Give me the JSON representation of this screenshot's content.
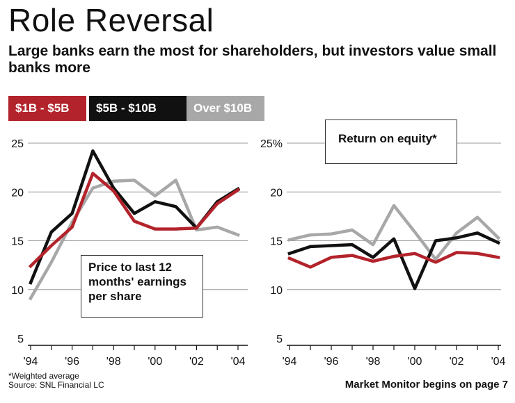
{
  "header": {
    "title": "Role Reversal",
    "subtitle": "Large banks earn the most for shareholders, but investors value small banks more"
  },
  "legend": {
    "items": [
      {
        "label": "$1B - $5B",
        "color": "#b3232b"
      },
      {
        "label": "$5B - $10B",
        "color": "#111111"
      },
      {
        "label": "Over $10B",
        "color": "#a8a8a8"
      }
    ]
  },
  "chart_data": [
    {
      "type": "line",
      "title": "Price to last 12 months' earnings per share",
      "x": [
        1994,
        1995,
        1996,
        1997,
        1998,
        1999,
        2000,
        2001,
        2002,
        2003,
        2004
      ],
      "xtick_labels": [
        "'94",
        "'96",
        "'98",
        "'00",
        "'02",
        "'04"
      ],
      "ylim": [
        5,
        25
      ],
      "yticks": [
        "5",
        "10",
        "15",
        "20",
        "25"
      ],
      "series": [
        {
          "name": "$1B - $5B",
          "color": "#b3232b",
          "values": [
            12.4,
            14.5,
            16.4,
            21.9,
            20.1,
            17.0,
            16.2,
            16.2,
            16.3,
            18.8,
            20.2
          ]
        },
        {
          "name": "$5B - $10B",
          "color": "#111111",
          "values": [
            10.7,
            15.9,
            17.8,
            24.2,
            20.4,
            17.8,
            19.0,
            18.5,
            16.3,
            19.0,
            20.3
          ]
        },
        {
          "name": "Over $10B",
          "color": "#a8a8a8",
          "values": [
            9.1,
            12.8,
            16.9,
            20.4,
            21.1,
            21.2,
            19.6,
            21.2,
            16.1,
            16.4,
            15.6
          ]
        }
      ]
    },
    {
      "type": "line",
      "title": "Return on equity*",
      "x": [
        1994,
        1995,
        1996,
        1997,
        1998,
        1999,
        2000,
        2001,
        2002,
        2003,
        2004
      ],
      "xtick_labels": [
        "'94",
        "'96",
        "'98",
        "'00",
        "'02",
        "'04"
      ],
      "ylim": [
        5,
        25
      ],
      "yticks": [
        "5",
        "10",
        "15",
        "20",
        "25%"
      ],
      "series": [
        {
          "name": "$1B - $5B",
          "color": "#b3232b",
          "values": [
            13.2,
            12.3,
            13.3,
            13.5,
            12.9,
            13.4,
            13.7,
            12.8,
            13.8,
            13.7,
            13.3
          ]
        },
        {
          "name": "$5B - $10B",
          "color": "#111111",
          "values": [
            13.7,
            14.4,
            14.5,
            14.6,
            13.3,
            15.2,
            10.1,
            15.0,
            15.3,
            15.8,
            14.8
          ]
        },
        {
          "name": "Over $10B",
          "color": "#a8a8a8",
          "values": [
            15.1,
            15.6,
            15.7,
            16.1,
            14.6,
            18.6,
            15.9,
            13.1,
            15.8,
            17.4,
            15.3
          ]
        }
      ]
    }
  ],
  "callouts": {
    "left": "Price to last 12 months' earnings per share",
    "right": "Return on equity*"
  },
  "footer": {
    "note": "*Weighted average",
    "source": "Source: SNL Financial LC",
    "right": "Market Monitor begins on page 7"
  }
}
